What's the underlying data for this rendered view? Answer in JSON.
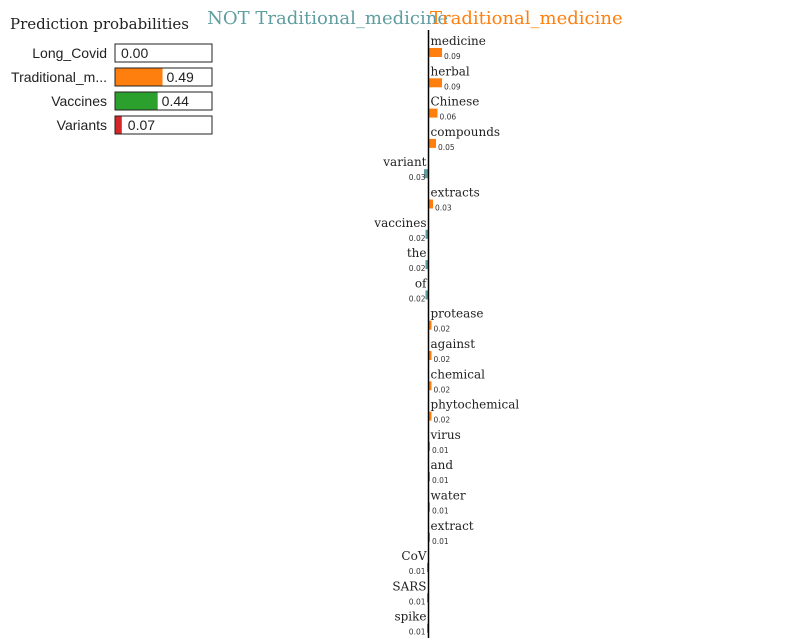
{
  "colors": {
    "not_class": "#5f9ea0",
    "class": "#ff7f0e",
    "orange": "#ff7f0e",
    "green": "#2ca02c",
    "red": "#d62728",
    "axis": "#000000"
  },
  "chart_data": [
    {
      "type": "bar",
      "orientation": "horizontal",
      "title": "Prediction probabilities",
      "categories": [
        "Long_Covid",
        "Traditional_m...",
        "Vaccines",
        "Variants"
      ],
      "values": [
        0.0,
        0.49,
        0.44,
        0.07
      ],
      "value_labels": [
        "0.00",
        "0.49",
        "0.44",
        "0.07"
      ],
      "bar_colors": [
        "#1f77b4",
        "#ff7f0e",
        "#2ca02c",
        "#d62728"
      ],
      "xlim": [
        0,
        1
      ]
    },
    {
      "type": "bar",
      "orientation": "horizontal",
      "header_left": "NOT Traditional_medicine",
      "header_right": "Traditional_medicine",
      "features": [
        {
          "word": "medicine",
          "weight": 0.09,
          "label": "0.09",
          "side": "right"
        },
        {
          "word": "herbal",
          "weight": 0.09,
          "label": "0.09",
          "side": "right"
        },
        {
          "word": "Chinese",
          "weight": 0.06,
          "label": "0.06",
          "side": "right"
        },
        {
          "word": "compounds",
          "weight": 0.05,
          "label": "0.05",
          "side": "right"
        },
        {
          "word": "variant",
          "weight": 0.03,
          "label": "0.03",
          "side": "left"
        },
        {
          "word": "extracts",
          "weight": 0.03,
          "label": "0.03",
          "side": "right"
        },
        {
          "word": "vaccines",
          "weight": 0.02,
          "label": "0.02",
          "side": "left"
        },
        {
          "word": "the",
          "weight": 0.02,
          "label": "0.02",
          "side": "left"
        },
        {
          "word": "of",
          "weight": 0.02,
          "label": "0.02",
          "side": "left"
        },
        {
          "word": "protease",
          "weight": 0.02,
          "label": "0.02",
          "side": "right"
        },
        {
          "word": "against",
          "weight": 0.02,
          "label": "0.02",
          "side": "right"
        },
        {
          "word": "chemical",
          "weight": 0.02,
          "label": "0.02",
          "side": "right"
        },
        {
          "word": "phytochemical",
          "weight": 0.02,
          "label": "0.02",
          "side": "right"
        },
        {
          "word": "virus",
          "weight": 0.01,
          "label": "0.01",
          "side": "right"
        },
        {
          "word": "and",
          "weight": 0.01,
          "label": "0.01",
          "side": "right"
        },
        {
          "word": "water",
          "weight": 0.01,
          "label": "0.01",
          "side": "right"
        },
        {
          "word": "extract",
          "weight": 0.01,
          "label": "0.01",
          "side": "right"
        },
        {
          "word": "CoV",
          "weight": 0.01,
          "label": "0.01",
          "side": "left"
        },
        {
          "word": "SARS",
          "weight": 0.01,
          "label": "0.01",
          "side": "left"
        },
        {
          "word": "spike",
          "weight": 0.01,
          "label": "0.01",
          "side": "left"
        }
      ]
    }
  ]
}
